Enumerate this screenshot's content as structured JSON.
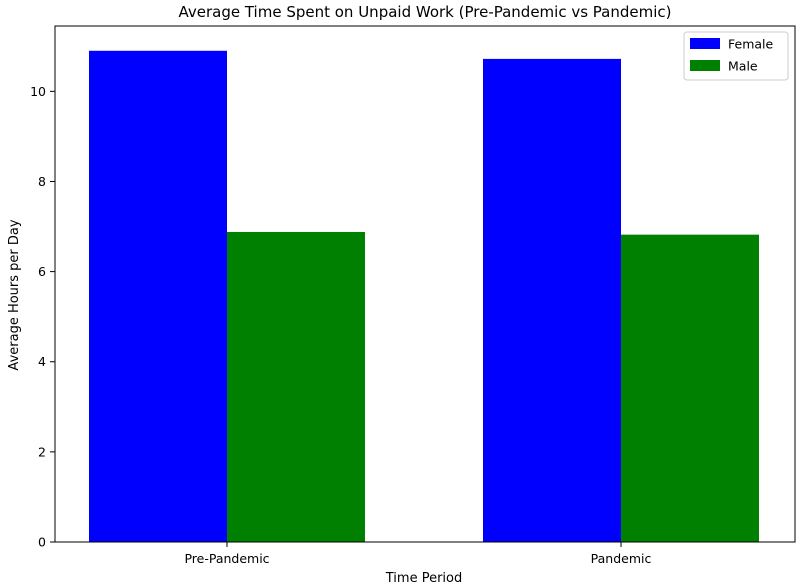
{
  "chart_data": {
    "type": "bar",
    "title": "Average Time Spent on Unpaid Work (Pre-Pandemic vs Pandemic)",
    "xlabel": "Time Period",
    "ylabel": "Average Hours per Day",
    "categories": [
      "Pre-Pandemic",
      "Pandemic"
    ],
    "series": [
      {
        "name": "Female",
        "values": [
          10.9,
          10.72
        ],
        "color": "#0000ff"
      },
      {
        "name": "Male",
        "values": [
          6.88,
          6.82
        ],
        "color": "#008000"
      }
    ],
    "ylim": [
      0,
      11.45
    ],
    "yticks": [
      0,
      2,
      4,
      6,
      8,
      10
    ],
    "grid": false,
    "legend_position": "top-right"
  }
}
